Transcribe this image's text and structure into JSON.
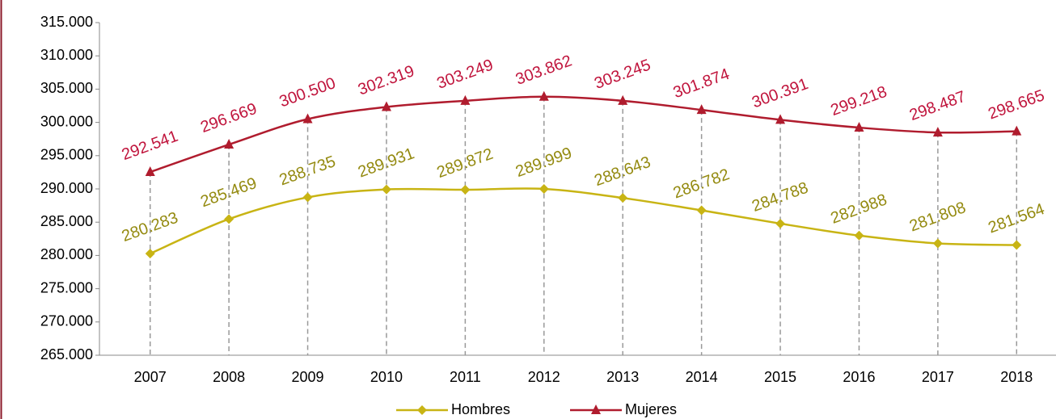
{
  "chart_data": {
    "type": "line",
    "categories": [
      "2007",
      "2008",
      "2009",
      "2010",
      "2011",
      "2012",
      "2013",
      "2014",
      "2015",
      "2016",
      "2017",
      "2018"
    ],
    "series": [
      {
        "name": "Hombres",
        "color": "#c8b414",
        "label_color": "#948a10",
        "marker": "diamond",
        "values": [
          280283,
          285469,
          288735,
          289931,
          289872,
          289999,
          288643,
          286782,
          284788,
          282988,
          281808,
          281564
        ],
        "value_labels": [
          "280.283",
          "285.469",
          "288.735",
          "289.931",
          "289.872",
          "289.999",
          "288.643",
          "286.782",
          "284.788",
          "282.988",
          "281.808",
          "281.564"
        ]
      },
      {
        "name": "Mujeres",
        "color": "#b01c2e",
        "label_color": "#c0143c",
        "marker": "triangle",
        "values": [
          292541,
          296669,
          300500,
          302319,
          303249,
          303862,
          303245,
          301874,
          300391,
          299218,
          298487,
          298665
        ],
        "value_labels": [
          "292.541",
          "296.669",
          "300.500",
          "302.319",
          "303.249",
          "303.862",
          "303.245",
          "301.874",
          "300.391",
          "299.218",
          "298.487",
          "298.665"
        ]
      }
    ],
    "ylim": [
      265000,
      315000
    ],
    "yticks": [
      {
        "value": 265000,
        "label": "265.000"
      },
      {
        "value": 270000,
        "label": "270.000"
      },
      {
        "value": 275000,
        "label": "275.000"
      },
      {
        "value": 280000,
        "label": "280.000"
      },
      {
        "value": 285000,
        "label": "285.000"
      },
      {
        "value": 290000,
        "label": "290.000"
      },
      {
        "value": 295000,
        "label": "295.000"
      },
      {
        "value": 300000,
        "label": "300.000"
      },
      {
        "value": 305000,
        "label": "305.000"
      },
      {
        "value": 310000,
        "label": "310.000"
      },
      {
        "value": 315000,
        "label": "315.000"
      }
    ],
    "drop_lines": true,
    "legend": "bottom"
  }
}
